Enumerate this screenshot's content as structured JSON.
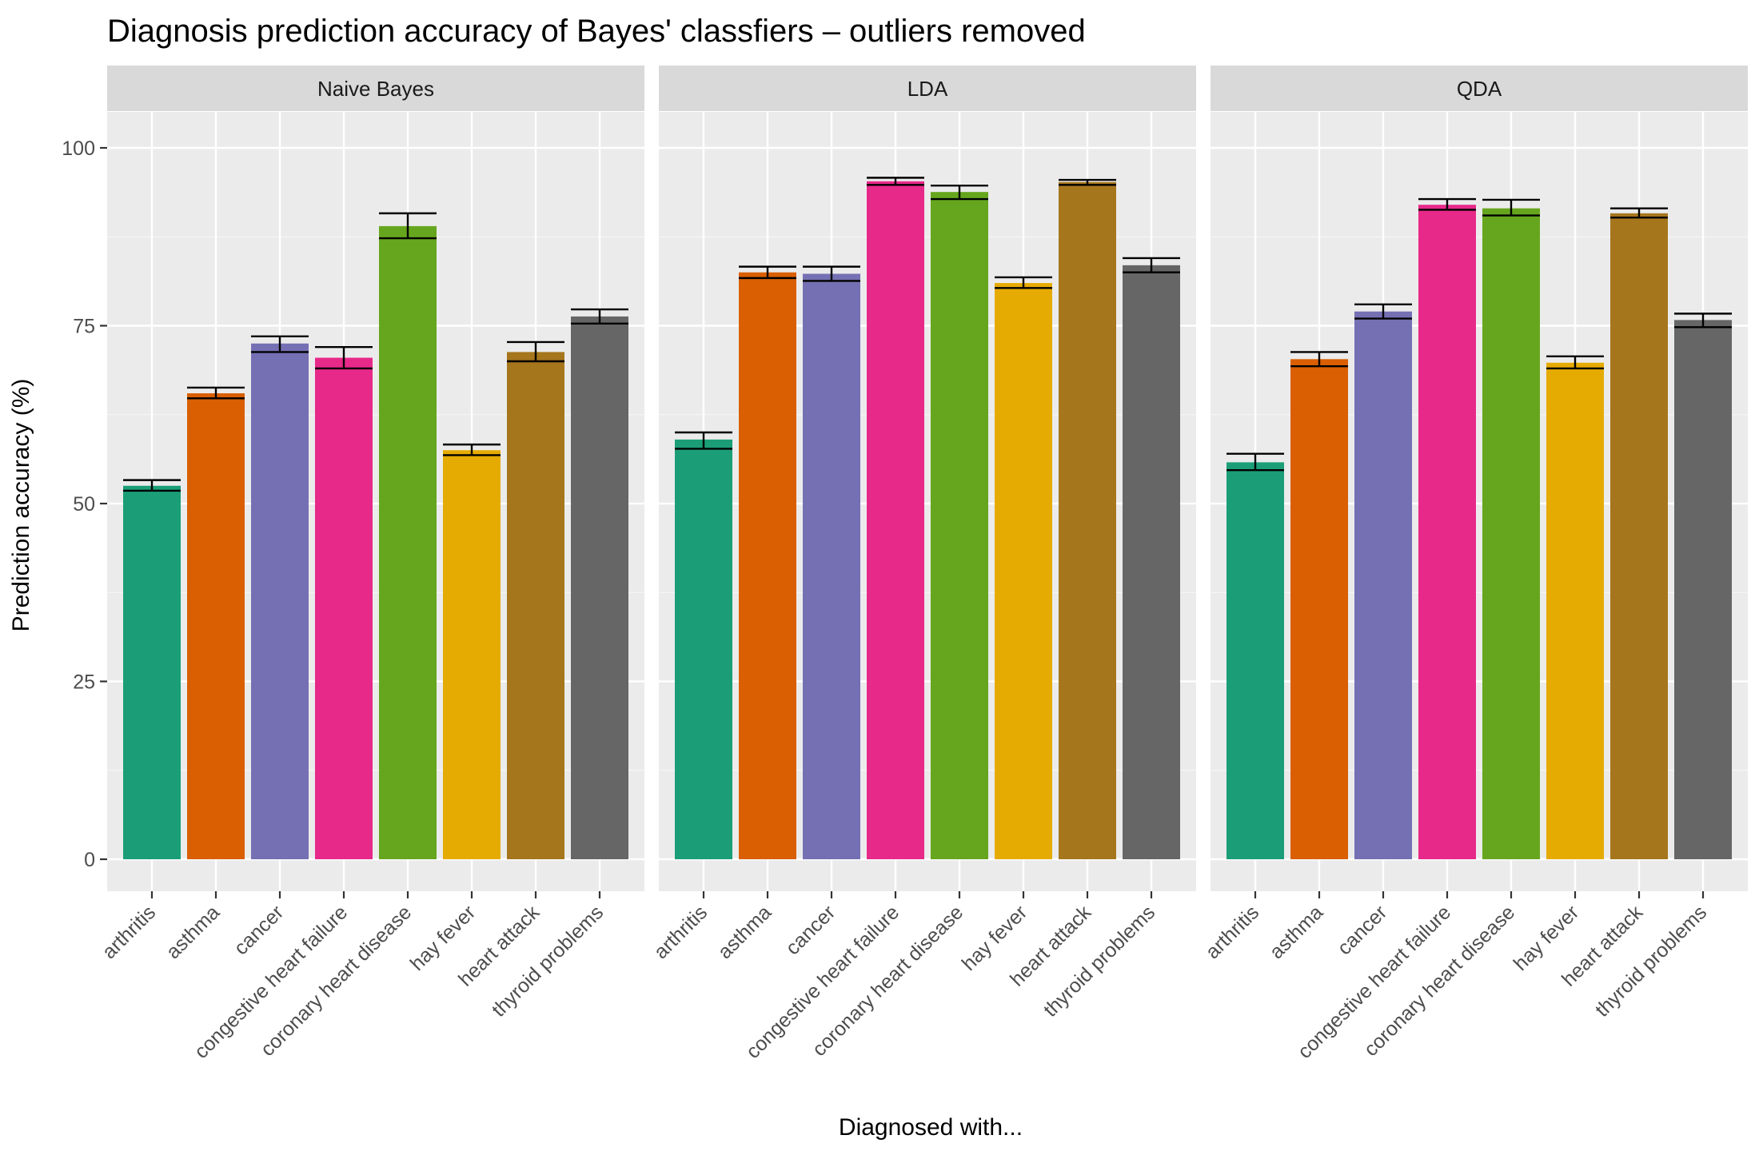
{
  "chart_data": {
    "type": "bar",
    "title": "Diagnosis prediction accuracy of Bayes' classfiers – outliers removed",
    "xlabel": "Diagnosed with...",
    "ylabel": "Prediction accuracy (%)",
    "ylim": [
      0,
      100
    ],
    "yticks": [
      "0",
      "25",
      "50",
      "75",
      "100"
    ],
    "grid": true,
    "categories": [
      "arthritis",
      "asthma",
      "cancer",
      "congestive heart failure",
      "coronary heart disease",
      "hay fever",
      "heart attack",
      "thyroid problems"
    ],
    "colors": [
      "#1B9E77",
      "#D95F02",
      "#7570B3",
      "#E7298A",
      "#66A61E",
      "#E6AB02",
      "#A6761D",
      "#666666"
    ],
    "panels": [
      {
        "name": "Naive Bayes",
        "values": [
          52.5,
          65.5,
          72.5,
          70.5,
          89.0,
          57.5,
          71.3,
          76.3
        ],
        "error_low": [
          51.8,
          64.8,
          71.3,
          69.0,
          87.3,
          56.8,
          70.0,
          75.3
        ],
        "error_high": [
          53.3,
          66.3,
          73.5,
          72.0,
          90.8,
          58.3,
          72.7,
          77.3
        ]
      },
      {
        "name": "LDA",
        "values": [
          59.0,
          82.5,
          82.3,
          95.3,
          93.8,
          81.0,
          95.2,
          83.5
        ],
        "error_low": [
          57.7,
          81.7,
          81.3,
          94.8,
          92.8,
          80.3,
          94.8,
          82.5
        ],
        "error_high": [
          60.0,
          83.3,
          83.3,
          95.8,
          94.7,
          81.8,
          95.5,
          84.5
        ]
      },
      {
        "name": "QDA",
        "values": [
          55.8,
          70.3,
          77.0,
          92.0,
          91.5,
          69.8,
          90.8,
          75.8
        ],
        "error_low": [
          54.7,
          69.3,
          76.0,
          91.3,
          90.5,
          69.0,
          90.2,
          74.8
        ],
        "error_high": [
          57.0,
          71.3,
          78.0,
          92.8,
          92.7,
          70.7,
          91.5,
          76.7
        ]
      }
    ]
  }
}
